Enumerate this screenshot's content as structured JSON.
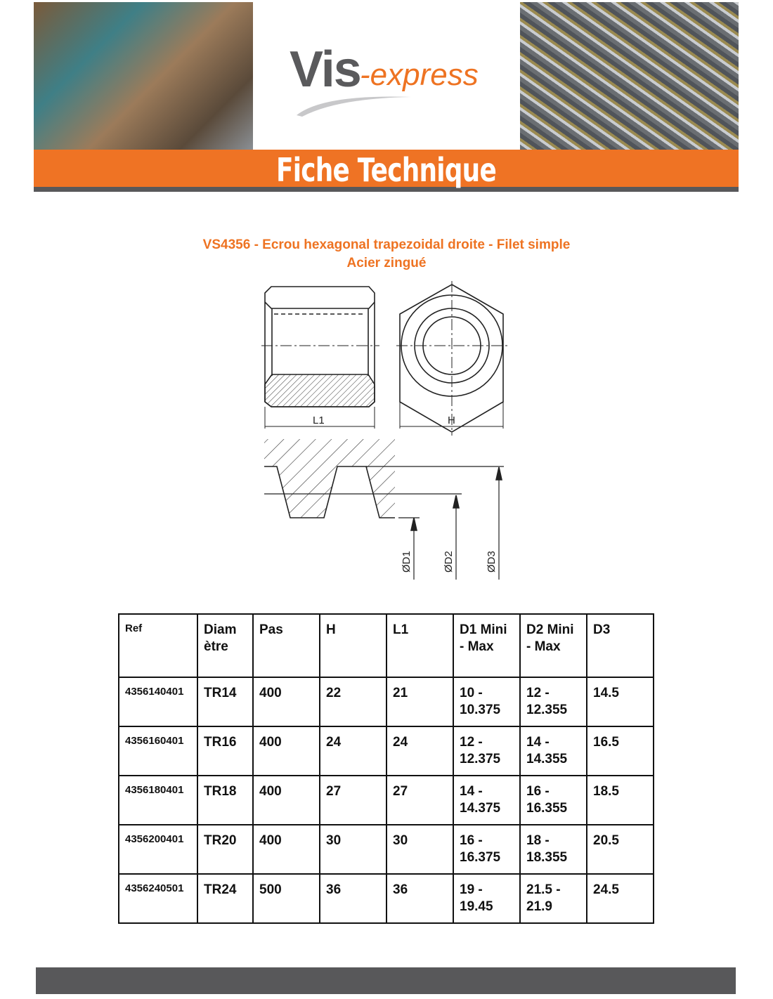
{
  "header": {
    "logo_main": "Vis",
    "logo_accent": "-express",
    "band_title": "Fiche Technique",
    "brand_orange": "#ef7324",
    "brand_gray": "#58585a"
  },
  "product": {
    "title": "VS4356 - Ecrou hexagonal trapezoidal droite - Filet simple",
    "material": "Acier zingué"
  },
  "drawing": {
    "labels": {
      "l1": "L1",
      "h": "H",
      "d1": "ØD1",
      "d2": "ØD2",
      "d3": "ØD3"
    }
  },
  "table": {
    "columns": [
      "Ref",
      "Diam ètre",
      "Pas",
      "H",
      "L1",
      "D1 Mini - Max",
      "D2 Mini - Max",
      "D3"
    ],
    "rows": [
      [
        "4356140401",
        "TR14",
        "400",
        "22",
        "21",
        "10 - 10.375",
        "12 - 12.355",
        "14.5"
      ],
      [
        "4356160401",
        "TR16",
        "400",
        "24",
        "24",
        "12 - 12.375",
        "14 - 14.355",
        "16.5"
      ],
      [
        "4356180401",
        "TR18",
        "400",
        "27",
        "27",
        "14 - 14.375",
        "16 - 16.355",
        "18.5"
      ],
      [
        "4356200401",
        "TR20",
        "400",
        "30",
        "30",
        "16 - 16.375",
        "18 - 18.355",
        "20.5"
      ],
      [
        "4356240501",
        "TR24",
        "500",
        "36",
        "36",
        "19 - 19.45",
        "21.5 - 21.9",
        "24.5"
      ]
    ]
  }
}
